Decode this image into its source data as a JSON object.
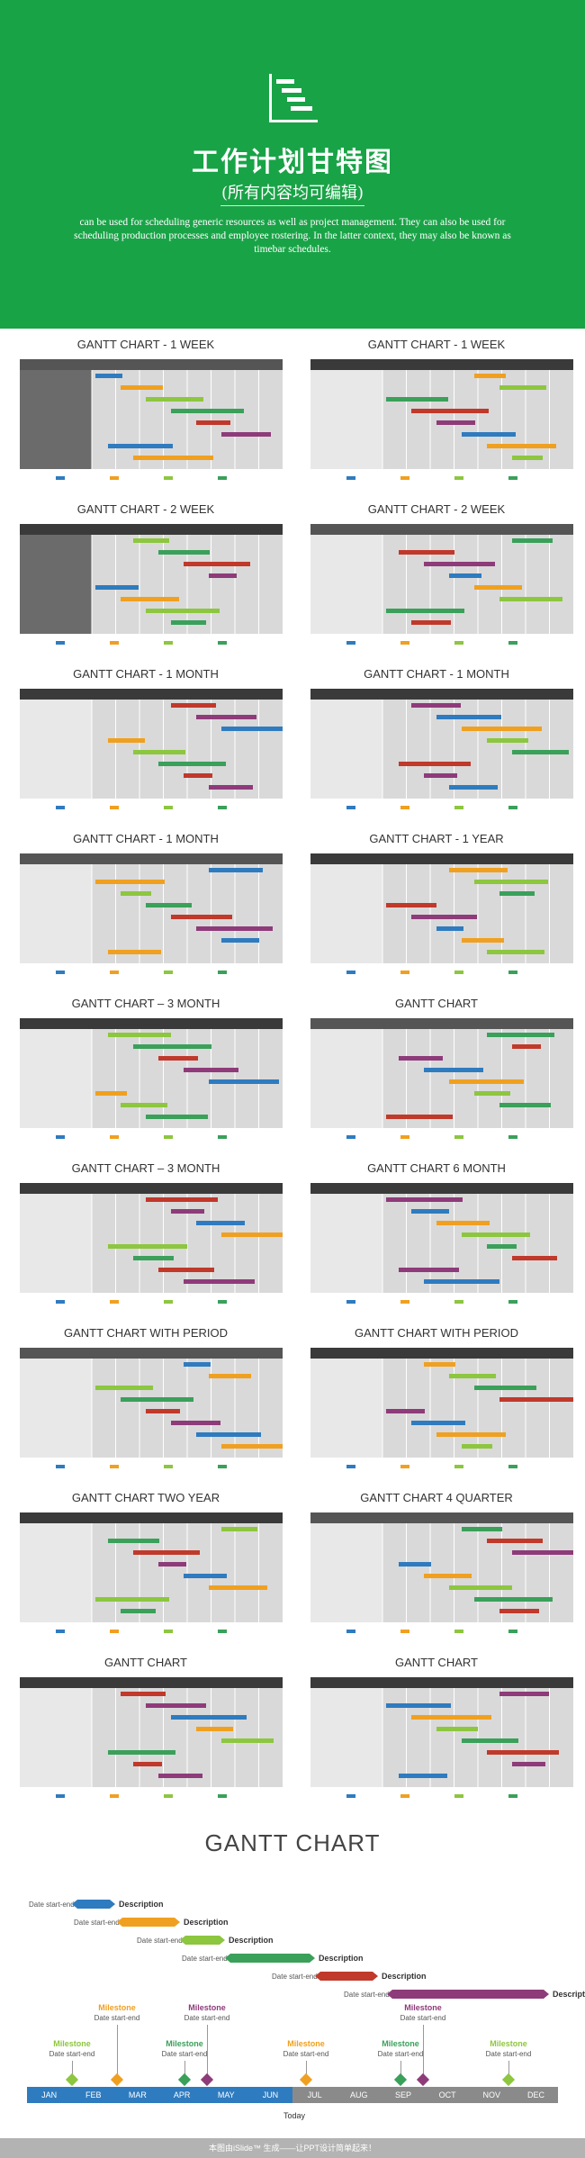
{
  "hero": {
    "title": "工作计划甘特图",
    "subtitle": "(所有内容均可编辑)",
    "description": "can be used for scheduling generic resources as well as project management. They can also be used for scheduling production processes and employee rostering. In the latter context, they may also be known as timebar schedules."
  },
  "thumbnails": [
    {
      "title": "GANTT CHART - 1 WEEK"
    },
    {
      "title": "GANTT CHART - 1 WEEK"
    },
    {
      "title": "GANTT CHART - 2 WEEK"
    },
    {
      "title": "GANTT CHART - 2 WEEK"
    },
    {
      "title": "GANTT CHART - 1 MONTH"
    },
    {
      "title": "GANTT CHART - 1 MONTH"
    },
    {
      "title": "GANTT CHART - 1 MONTH"
    },
    {
      "title": "GANTT CHART - 1 YEAR"
    },
    {
      "title": "GANTT CHART – 3 MONTH"
    },
    {
      "title": "GANTT CHART"
    },
    {
      "title": "GANTT CHART – 3 MONTH"
    },
    {
      "title": "GANTT CHART 6 MONTH"
    },
    {
      "title": "GANTT CHART WITH PERIOD"
    },
    {
      "title": "GANTT CHART WITH PERIOD"
    },
    {
      "title": "GANTT CHART TWO YEAR"
    },
    {
      "title": "GANTT CHART 4 QUARTER"
    },
    {
      "title": "GANTT CHART"
    },
    {
      "title": "GANTT CHART"
    }
  ],
  "bottom": {
    "title": "GANTT CHART",
    "tasks": [
      {
        "date": "Date start-end",
        "desc": "Description"
      },
      {
        "date": "Date start-end",
        "desc": "Description"
      },
      {
        "date": "Date start-end",
        "desc": "Description"
      },
      {
        "date": "Date start-end",
        "desc": "Description"
      },
      {
        "date": "Date start-end",
        "desc": "Description"
      },
      {
        "date": "Date start-end",
        "desc": "Description"
      }
    ],
    "milestones": [
      {
        "label": "Milestone",
        "date": "Date start-end"
      },
      {
        "label": "Milestone",
        "date": "Date start-end"
      },
      {
        "label": "Milestone",
        "date": "Date start-end"
      },
      {
        "label": "Milestone",
        "date": "Date start-end"
      },
      {
        "label": "Milestone",
        "date": "Date start-end"
      },
      {
        "label": "Milestone",
        "date": "Date start-end"
      },
      {
        "label": "Milestone",
        "date": "Date start-end"
      },
      {
        "label": "Milestone",
        "date": "Date start-end"
      }
    ],
    "months": [
      "JAN",
      "FEB",
      "MAR",
      "APR",
      "MAY",
      "JUN",
      "JUL",
      "AUG",
      "SEP",
      "OCT",
      "NOV",
      "DEC"
    ],
    "today": "Today"
  },
  "footer": "本图由iSlide™ 生成——让PPT设计简单起来！",
  "colors": {
    "green": "#19a347",
    "blue": "#2f7bbf",
    "orange": "#f0a020",
    "lightgreen": "#8dc63f",
    "darkgreen": "#3aa05a",
    "red": "#c0392b",
    "purple": "#8e3b7a"
  }
}
